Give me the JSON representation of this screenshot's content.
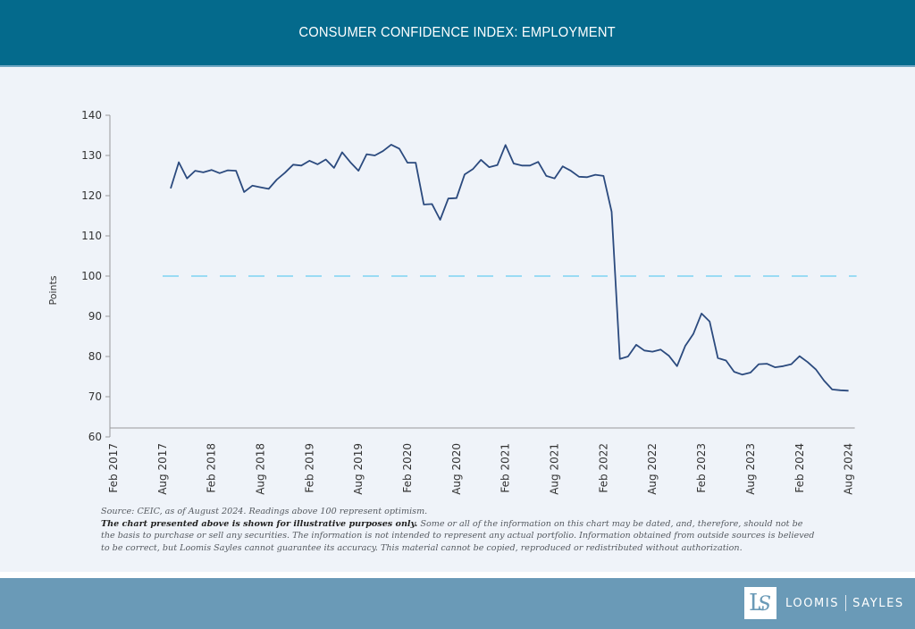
{
  "header": {
    "title": "CONSUMER CONFIDENCE INDEX: EMPLOYMENT"
  },
  "chart_data": {
    "type": "line",
    "title": "CONSUMER CONFIDENCE INDEX: EMPLOYMENT",
    "xlabel": "",
    "ylabel": "Points",
    "ylim": [
      60,
      140
    ],
    "yticks": [
      60,
      70,
      80,
      90,
      100,
      110,
      120,
      130,
      140
    ],
    "xlim": [
      "2017-02",
      "2024-08"
    ],
    "xtick_labels": [
      "Feb 2017",
      "Aug 2017",
      "Feb 2018",
      "Aug 2018",
      "Feb 2019",
      "Aug 2019",
      "Feb 2020",
      "Aug 2020",
      "Feb 2021",
      "Aug 2021",
      "Feb 2022",
      "Aug 2022",
      "Feb 2023",
      "Aug 2023",
      "Feb 2024",
      "Aug 2024"
    ],
    "grid": false,
    "reference_line": {
      "value": 100,
      "style": "dashed",
      "color": "#7fd3f2",
      "meaning": "Readings above 100 represent optimism"
    },
    "series": [
      {
        "name": "Employment",
        "color": "#2b4a7e",
        "x": [
          "2017-09",
          "2017-10",
          "2017-11",
          "2017-12",
          "2018-01",
          "2018-02",
          "2018-03",
          "2018-04",
          "2018-05",
          "2018-06",
          "2018-07",
          "2018-08",
          "2018-09",
          "2018-10",
          "2018-11",
          "2018-12",
          "2019-01",
          "2019-02",
          "2019-03",
          "2019-04",
          "2019-05",
          "2019-06",
          "2019-07",
          "2019-08",
          "2019-09",
          "2019-10",
          "2019-11",
          "2019-12",
          "2020-01",
          "2020-02",
          "2020-03",
          "2020-04",
          "2020-05",
          "2020-06",
          "2020-07",
          "2020-08",
          "2020-09",
          "2020-10",
          "2020-11",
          "2020-12",
          "2021-01",
          "2021-02",
          "2021-03",
          "2021-04",
          "2021-05",
          "2021-06",
          "2021-07",
          "2021-08",
          "2021-09",
          "2021-10",
          "2021-11",
          "2021-12",
          "2022-01",
          "2022-02",
          "2022-03",
          "2022-04",
          "2022-05",
          "2022-06",
          "2022-07",
          "2022-08",
          "2022-09",
          "2022-10",
          "2022-11",
          "2022-12",
          "2023-01",
          "2023-02",
          "2023-03",
          "2023-04",
          "2023-05",
          "2023-06",
          "2023-07",
          "2023-08",
          "2023-09",
          "2023-10",
          "2023-11",
          "2023-12",
          "2024-01",
          "2024-02",
          "2024-03",
          "2024-04",
          "2024-05",
          "2024-06",
          "2024-07",
          "2024-08"
        ],
        "values": [
          121.8,
          128.3,
          124.3,
          126.2,
          125.8,
          126.4,
          125.6,
          126.3,
          126.2,
          120.9,
          122.5,
          122.1,
          121.7,
          124.0,
          125.7,
          127.7,
          127.5,
          128.7,
          127.8,
          129.0,
          126.9,
          130.8,
          128.3,
          126.2,
          130.3,
          130.0,
          131.1,
          132.7,
          131.7,
          128.2,
          128.2,
          117.8,
          117.9,
          114.0,
          119.3,
          119.4,
          125.3,
          126.6,
          128.9,
          127.1,
          127.6,
          132.6,
          128.0,
          127.5,
          127.5,
          128.4,
          124.9,
          124.3,
          127.3,
          126.2,
          124.7,
          124.6,
          125.2,
          124.9,
          116.0,
          79.4,
          80.0,
          82.9,
          81.5,
          81.2,
          81.7,
          80.2,
          77.6,
          82.6,
          85.6,
          90.7,
          88.7,
          79.6,
          79.0,
          76.2,
          75.5,
          76.0,
          78.1,
          78.2,
          77.3,
          77.6,
          78.1,
          80.1,
          78.6,
          76.8,
          74.0,
          71.8,
          71.6,
          71.5
        ]
      }
    ]
  },
  "footnote": {
    "source": "Source: CEIC, as of August 2024. Readings above 100 represent optimism.",
    "disclaimer_bold": "The chart presented above is shown for illustrative purposes only.",
    "disclaimer_rest": " Some or all of the information on this chart may be dated, and, therefore, should not be the basis to purchase or sell any securities. The information is not intended to represent any actual portfolio. Information obtained from outside sources is believed to be correct, but Loomis Sayles cannot guarantee its accuracy. This material cannot be copied, reproduced or redistributed without authorization."
  },
  "footer": {
    "logo_name_left": "LOOMIS",
    "logo_name_right": "SAYLES",
    "logo_mark_left": "L",
    "logo_mark_right": "S",
    "colors": {
      "header": "#046a8c",
      "footer": "#6a9ab7",
      "panel": "#eff3f9"
    }
  }
}
